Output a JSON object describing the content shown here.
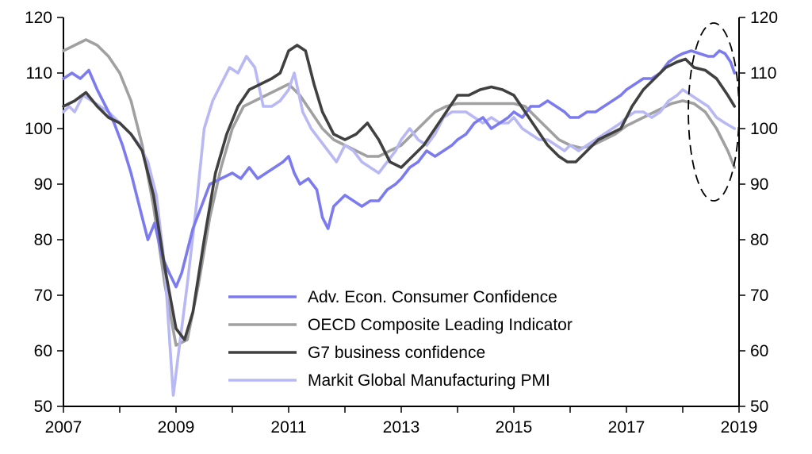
{
  "chart_data": {
    "type": "line",
    "title": "",
    "xlabel": "",
    "ylabel": "",
    "x_tick_labels": [
      "2007",
      "2009",
      "2011",
      "2013",
      "2015",
      "2017",
      "2019"
    ],
    "y_ticks": [
      50,
      60,
      70,
      80,
      90,
      100,
      110,
      120
    ],
    "y_tick_labels": [
      "50",
      "60",
      "70",
      "80",
      "90",
      "100",
      "110",
      "120"
    ],
    "xlim": [
      2007,
      2019
    ],
    "ylim": [
      50,
      120
    ],
    "grid": false,
    "legend_position": "bottom-center",
    "annotation": "dashed ellipse highlighting late 2018",
    "annotation_range": {
      "x": [
        2018.1,
        2019.0
      ],
      "y": [
        87,
        119
      ]
    },
    "series": [
      {
        "name": "Adv. Econ. Consumer Confidence",
        "color": "#7b7bef",
        "x": [
          2007.0,
          2007.15,
          2007.3,
          2007.45,
          2007.6,
          2007.75,
          2007.9,
          2008.05,
          2008.2,
          2008.35,
          2008.5,
          2008.62,
          2008.75,
          2008.88,
          2009.0,
          2009.1,
          2009.2,
          2009.3,
          2009.45,
          2009.6,
          2009.8,
          2010.0,
          2010.15,
          2010.3,
          2010.45,
          2010.6,
          2010.75,
          2010.9,
          2011.0,
          2011.1,
          2011.2,
          2011.35,
          2011.5,
          2011.6,
          2011.7,
          2011.8,
          2011.9,
          2012.0,
          2012.15,
          2012.3,
          2012.45,
          2012.6,
          2012.75,
          2012.9,
          2013.0,
          2013.15,
          2013.3,
          2013.45,
          2013.6,
          2013.75,
          2013.9,
          2014.0,
          2014.15,
          2014.3,
          2014.45,
          2014.6,
          2014.75,
          2014.9,
          2015.0,
          2015.15,
          2015.3,
          2015.45,
          2015.6,
          2015.75,
          2015.9,
          2016.0,
          2016.15,
          2016.3,
          2016.45,
          2016.6,
          2016.75,
          2016.9,
          2017.0,
          2017.15,
          2017.3,
          2017.45,
          2017.6,
          2017.75,
          2017.9,
          2018.0,
          2018.15,
          2018.3,
          2018.45,
          2018.55,
          2018.65,
          2018.75,
          2018.85,
          2018.92
        ],
        "values": [
          109,
          110,
          109,
          110.5,
          107,
          104,
          101,
          97,
          92,
          86,
          80,
          83,
          77,
          74,
          71.5,
          74,
          78,
          82,
          86,
          90,
          91,
          92,
          91,
          93,
          91,
          92,
          93,
          94,
          95,
          92,
          90,
          91,
          89,
          84,
          82,
          86,
          87,
          88,
          87,
          86,
          87,
          87,
          89,
          90,
          91,
          93,
          94,
          96,
          95,
          96,
          97,
          98,
          99,
          101,
          102,
          100,
          101,
          102,
          103,
          102,
          104,
          104,
          105,
          104,
          103,
          102,
          102,
          103,
          103,
          104,
          105,
          106,
          107,
          108,
          109,
          109,
          110,
          112,
          113,
          113.5,
          114,
          113.5,
          113,
          113,
          114,
          113.5,
          112,
          110
        ]
      },
      {
        "name": "OECD Composite Leading Indicator",
        "color": "#a0a0a0",
        "x": [
          2007.0,
          2007.2,
          2007.4,
          2007.6,
          2007.8,
          2008.0,
          2008.2,
          2008.4,
          2008.6,
          2008.8,
          2009.0,
          2009.2,
          2009.4,
          2009.6,
          2009.8,
          2010.0,
          2010.2,
          2010.4,
          2010.6,
          2010.8,
          2011.0,
          2011.2,
          2011.4,
          2011.6,
          2011.8,
          2012.0,
          2012.2,
          2012.4,
          2012.6,
          2012.8,
          2013.0,
          2013.2,
          2013.4,
          2013.6,
          2013.8,
          2014.0,
          2014.2,
          2014.4,
          2014.6,
          2014.8,
          2015.0,
          2015.2,
          2015.4,
          2015.6,
          2015.8,
          2016.0,
          2016.2,
          2016.4,
          2016.6,
          2016.8,
          2017.0,
          2017.2,
          2017.4,
          2017.6,
          2017.8,
          2018.0,
          2018.2,
          2018.4,
          2018.6,
          2018.8,
          2018.92
        ],
        "values": [
          114,
          115,
          116,
          115,
          113,
          110,
          105,
          97,
          86,
          72,
          61,
          62,
          72,
          84,
          93,
          100,
          104,
          105,
          106,
          107,
          108,
          106,
          103,
          100,
          98,
          97,
          96,
          95,
          95,
          96,
          97,
          99,
          101,
          103,
          104,
          104.5,
          104.5,
          104.5,
          104.5,
          104.5,
          104.5,
          104,
          102,
          100,
          98,
          97,
          96.5,
          97,
          98,
          99,
          100.5,
          101.5,
          102.5,
          103.5,
          104.5,
          105,
          104.5,
          103,
          100,
          96,
          93
        ]
      },
      {
        "name": "G7 business confidence",
        "color": "#404040",
        "x": [
          2007.0,
          2007.2,
          2007.4,
          2007.6,
          2007.8,
          2008.0,
          2008.2,
          2008.4,
          2008.6,
          2008.8,
          2009.0,
          2009.15,
          2009.3,
          2009.5,
          2009.7,
          2009.9,
          2010.1,
          2010.3,
          2010.5,
          2010.7,
          2010.85,
          2011.0,
          2011.15,
          2011.3,
          2011.45,
          2011.6,
          2011.8,
          2012.0,
          2012.2,
          2012.4,
          2012.6,
          2012.8,
          2013.0,
          2013.2,
          2013.4,
          2013.6,
          2013.8,
          2014.0,
          2014.2,
          2014.4,
          2014.6,
          2014.8,
          2015.0,
          2015.2,
          2015.4,
          2015.6,
          2015.8,
          2015.95,
          2016.1,
          2016.3,
          2016.5,
          2016.7,
          2016.9,
          2017.1,
          2017.3,
          2017.5,
          2017.7,
          2017.9,
          2018.05,
          2018.2,
          2018.4,
          2018.6,
          2018.8,
          2018.92
        ],
        "values": [
          104,
          105,
          106.5,
          104,
          102,
          101,
          99,
          96,
          88,
          75,
          64,
          62,
          67,
          80,
          92,
          99,
          104,
          107,
          108,
          109,
          110,
          114,
          115,
          114,
          108,
          103,
          99,
          98,
          99,
          101,
          98,
          94,
          93,
          95,
          97,
          100,
          103,
          106,
          106,
          107,
          107.5,
          107,
          106,
          103,
          100,
          97,
          95,
          94,
          94,
          96,
          98,
          99,
          100,
          104,
          107,
          109,
          111,
          112,
          112.5,
          111,
          110.5,
          109,
          106,
          104
        ]
      },
      {
        "name": "Markit Global Manufacturing PMI",
        "color": "#b8b8f4",
        "x": [
          2007.0,
          2007.1,
          2007.2,
          2007.35,
          2007.5,
          2007.65,
          2007.8,
          2008.0,
          2008.2,
          2008.35,
          2008.5,
          2008.65,
          2008.8,
          2008.95,
          2009.05,
          2009.2,
          2009.35,
          2009.5,
          2009.65,
          2009.8,
          2009.95,
          2010.1,
          2010.25,
          2010.4,
          2010.55,
          2010.7,
          2010.85,
          2011.0,
          2011.1,
          2011.25,
          2011.4,
          2011.55,
          2011.7,
          2011.85,
          2012.0,
          2012.15,
          2012.3,
          2012.45,
          2012.6,
          2012.75,
          2012.9,
          2013.0,
          2013.15,
          2013.3,
          2013.45,
          2013.6,
          2013.75,
          2013.9,
          2014.0,
          2014.15,
          2014.3,
          2014.45,
          2014.6,
          2014.75,
          2014.9,
          2015.0,
          2015.15,
          2015.3,
          2015.45,
          2015.6,
          2015.75,
          2015.9,
          2016.0,
          2016.15,
          2016.3,
          2016.45,
          2016.6,
          2016.75,
          2016.9,
          2017.0,
          2017.15,
          2017.3,
          2017.45,
          2017.6,
          2017.75,
          2017.9,
          2018.0,
          2018.15,
          2018.3,
          2018.45,
          2018.6,
          2018.75,
          2018.92
        ],
        "values": [
          103,
          104,
          103,
          106,
          105,
          104,
          103,
          101,
          99,
          97,
          94,
          88,
          75,
          52,
          60,
          72,
          85,
          100,
          105,
          108,
          111,
          110,
          113,
          111,
          104,
          104,
          105,
          107,
          110,
          103,
          100,
          98,
          96,
          94,
          97,
          96,
          94,
          93,
          92,
          94,
          96,
          98,
          100,
          98,
          97,
          99,
          102,
          103,
          103,
          103,
          102,
          101,
          102,
          101,
          101,
          102,
          100,
          99,
          98,
          98,
          97,
          96,
          97,
          96,
          97,
          98,
          99,
          100,
          101,
          102,
          103,
          103,
          102,
          103,
          105,
          106,
          107,
          106,
          105,
          104,
          102,
          101,
          100
        ]
      }
    ]
  }
}
